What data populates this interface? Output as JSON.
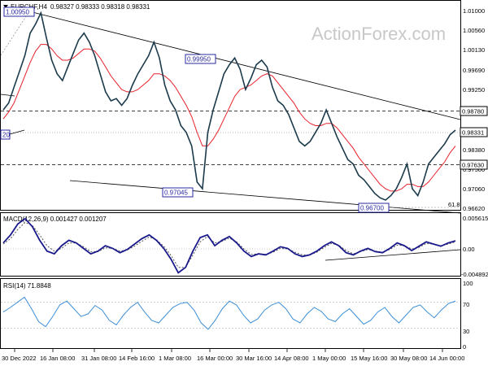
{
  "header": {
    "symbol": "EURCHF,H4",
    "ohlc": "0.98327 0.98333 0.98318 0.98331"
  },
  "watermark": "ActionForex.com",
  "price_panel": {
    "y_ticks": [
      "1.01000",
      "1.00560",
      "1.00130",
      "0.99690",
      "0.99250",
      "0.98810",
      "0.98380",
      "0.97940",
      "0.97500",
      "0.97060",
      "0.96620"
    ],
    "current_price": "0.98331",
    "hline_levels": [
      "0.98780",
      "0.97630"
    ],
    "annotations": [
      "1.00950",
      "0.99950",
      "0.97045",
      "0.96700"
    ],
    "fib_label": "61.8",
    "left_edge_label": "20"
  },
  "macd_panel": {
    "title": "MACD(12,26,9) 0.001427 0.001207",
    "y_ticks": [
      "0.005615",
      "0.00",
      "-0.004892"
    ]
  },
  "rsi_panel": {
    "title": "RSI(14) 71.8848",
    "y_ticks": [
      "100",
      "70",
      "30",
      "0"
    ]
  },
  "x_axis": {
    "labels": [
      "30 Dec 2022",
      "16 Jan 08:00",
      "31 Jan 08:00",
      "14 Feb 16:00",
      "1 Mar 08:00",
      "16 Mar 00:00",
      "30 Mar 16:00",
      "14 Apr 08:00",
      "1 May 00:00",
      "15 May 16:00",
      "30 May 08:00",
      "14 Jun 00:00"
    ]
  },
  "colors": {
    "price": "#1b3a4b",
    "ma": "#e8202a",
    "macd": "#1a1a8c",
    "signal": "#555555",
    "rsi": "#3d8fd6",
    "trendline": "#000000",
    "label": "#2a2aa0"
  },
  "chart_data": [
    {
      "type": "line",
      "panel": "price",
      "title": "EURCHF,H4",
      "ylim": [
        0.9662,
        1.01
      ],
      "x_labels": [
        "30 Dec 2022",
        "16 Jan 08:00",
        "31 Jan 08:00",
        "14 Feb 16:00",
        "1 Mar 08:00",
        "16 Mar 00:00",
        "30 Mar 16:00",
        "14 Apr 08:00",
        "1 May 00:00",
        "15 May 16:00",
        "30 May 08:00",
        "14 Jun 00:00"
      ],
      "series": [
        {
          "kind": "close",
          "values": [
            0.988,
            0.9895,
            0.993,
            0.9965,
            1.0,
            1.005,
            1.007,
            1.0095,
            1.004,
            0.999,
            0.996,
            0.9945,
            0.9975,
            1.0005,
            1.0035,
            1.005,
            1.003,
            1.0,
            0.996,
            0.992,
            0.99,
            0.9905,
            0.989,
            0.9905,
            0.9935,
            0.996,
            0.998,
            1.0,
            1.003,
            0.9995,
            0.9935,
            0.99,
            0.988,
            0.9845,
            0.983,
            0.98,
            0.972,
            0.9705,
            0.983,
            0.988,
            0.992,
            0.996,
            0.998,
            0.9995,
            0.997,
            0.9925,
            0.995,
            0.998,
            0.999,
            0.9975,
            0.993,
            0.99,
            0.989,
            0.987,
            0.984,
            0.981,
            0.98,
            0.981,
            0.983,
            0.985,
            0.988,
            0.985,
            0.982,
            0.9795,
            0.977,
            0.976,
            0.9735,
            0.9725,
            0.971,
            0.9695,
            0.9685,
            0.968,
            0.969,
            0.9705,
            0.973,
            0.976,
            0.9705,
            0.969,
            0.972,
            0.976,
            0.9775,
            0.979,
            0.9805,
            0.9825,
            0.9835
          ]
        },
        {
          "kind": "moving average",
          "values": [
            0.986,
            0.9875,
            0.9895,
            0.9925,
            0.9955,
            0.9985,
            1.001,
            1.0025,
            1.0025,
            1.0015,
            1.0,
            0.999,
            0.999,
            0.9995,
            1.0005,
            1.0015,
            1.0015,
            1.001,
            0.9995,
            0.9975,
            0.9955,
            0.994,
            0.9925,
            0.992,
            0.992,
            0.9925,
            0.9935,
            0.9945,
            0.996,
            0.996,
            0.9955,
            0.9945,
            0.993,
            0.991,
            0.989,
            0.9865,
            0.983,
            0.98,
            0.98,
            0.9815,
            0.9835,
            0.986,
            0.9885,
            0.991,
            0.9925,
            0.993,
            0.9935,
            0.9945,
            0.9955,
            0.996,
            0.9955,
            0.994,
            0.9925,
            0.991,
            0.9895,
            0.9875,
            0.986,
            0.985,
            0.9845,
            0.9845,
            0.985,
            0.985,
            0.984,
            0.9825,
            0.981,
            0.9795,
            0.9775,
            0.976,
            0.9745,
            0.973,
            0.9715,
            0.9705,
            0.97,
            0.97,
            0.9705,
            0.9715,
            0.9715,
            0.971,
            0.971,
            0.972,
            0.9735,
            0.975,
            0.9765,
            0.9785,
            0.98
          ]
        }
      ]
    },
    {
      "type": "line",
      "panel": "macd",
      "title": "MACD(12,26,9) 0.001427 0.001207",
      "ylim": [
        -0.004892,
        0.005615
      ],
      "series": [
        {
          "kind": "macd",
          "values": [
            0.001,
            0.0025,
            0.0045,
            0.0055,
            0.004,
            0.0015,
            -0.0005,
            -0.001,
            0.0005,
            0.0015,
            0.001,
            0.0,
            -0.001,
            -0.0005,
            0.0005,
            0.0,
            -0.0008,
            -0.0002,
            0.0008,
            0.0018,
            0.0025,
            0.0015,
            0.0,
            -0.002,
            -0.0045,
            -0.0035,
            -0.0005,
            0.002,
            0.0025,
            0.0005,
            0.0015,
            0.0022,
            0.001,
            -0.0005,
            -0.0015,
            -0.001,
            -0.0012,
            -0.0005,
            0.0003,
            0.0,
            -0.001,
            -0.0015,
            -0.0012,
            -0.0005,
            0.0005,
            0.0012,
            0.0005,
            -0.0008,
            -0.0012,
            -0.0005,
            0.0,
            -0.0006,
            -0.0008,
            0.0,
            0.001,
            0.0005,
            -0.0004,
            0.0004,
            0.0012,
            0.0008,
            0.0004,
            0.001,
            0.0014
          ]
        },
        {
          "kind": "signal",
          "values": [
            0.0008,
            0.0018,
            0.0035,
            0.0048,
            0.0042,
            0.0025,
            0.0005,
            -0.0005,
            0.0,
            0.001,
            0.001,
            0.0003,
            -0.0006,
            -0.0006,
            0.0001,
            0.0,
            -0.0005,
            -0.0003,
            0.0004,
            0.0013,
            0.0021,
            0.0016,
            0.0004,
            -0.0013,
            -0.0035,
            -0.0035,
            -0.0012,
            0.0012,
            0.0022,
            0.001,
            0.0013,
            0.0019,
            0.0012,
            -0.0001,
            -0.0011,
            -0.001,
            -0.0011,
            -0.0007,
            0.0,
            -0.0001,
            -0.0007,
            -0.0012,
            -0.0012,
            -0.0007,
            0.0002,
            0.0009,
            0.0006,
            -0.0004,
            -0.001,
            -0.0006,
            -0.0002,
            -0.0005,
            -0.0007,
            -0.0002,
            0.0006,
            0.0005,
            -0.0001,
            0.0002,
            0.0009,
            0.0008,
            0.0005,
            0.0008,
            0.0012
          ]
        }
      ]
    },
    {
      "type": "line",
      "panel": "rsi",
      "title": "RSI(14) 71.8848",
      "ylim": [
        0,
        100
      ],
      "series": [
        {
          "kind": "rsi",
          "values": [
            55,
            62,
            70,
            78,
            60,
            40,
            32,
            48,
            66,
            72,
            60,
            48,
            52,
            65,
            58,
            42,
            35,
            50,
            62,
            70,
            55,
            42,
            38,
            50,
            62,
            68,
            70,
            58,
            38,
            28,
            42,
            60,
            72,
            66,
            50,
            38,
            44,
            58,
            66,
            70,
            60,
            44,
            38,
            52,
            62,
            56,
            44,
            40,
            52,
            60,
            48,
            36,
            42,
            55,
            62,
            48,
            38,
            50,
            62,
            66,
            55,
            46,
            58,
            68,
            72
          ]
        }
      ],
      "levels": [
        70,
        30
      ]
    }
  ]
}
